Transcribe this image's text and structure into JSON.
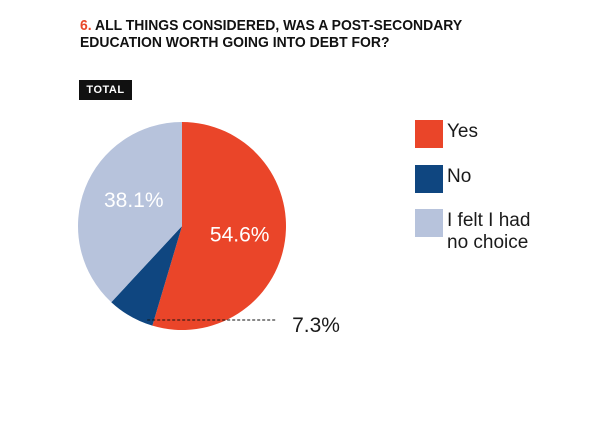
{
  "title": {
    "number": "6.",
    "text": "ALL THINGS CONSIDERED, WAS A POST-SECONDARY EDUCATION WORTH GOING INTO DEBT FOR?"
  },
  "badge": "TOTAL",
  "colors": {
    "accent": "#e8472a",
    "yes": "#ea4529",
    "no": "#0f4680",
    "no_choice": "#b7c3dc",
    "label_text": "#ffffff"
  },
  "chart_data": {
    "type": "pie",
    "start_angle_deg": 0,
    "direction": "clockwise",
    "series": [
      {
        "name": "Yes",
        "value": 54.6,
        "label": "54.6%",
        "color": "#ea4529"
      },
      {
        "name": "No",
        "value": 7.3,
        "label": "7.3%",
        "color": "#0f4680"
      },
      {
        "name": "I felt I had no choice",
        "value": 38.1,
        "label": "38.1%",
        "color": "#b7c3dc"
      }
    ],
    "legend": {
      "placement": "right",
      "entries": [
        {
          "lines": [
            "Yes"
          ],
          "color": "#ea4529"
        },
        {
          "lines": [
            "No"
          ],
          "color": "#0f4680"
        },
        {
          "lines": [
            "I felt I had",
            "no choice"
          ],
          "color": "#b7c3dc"
        }
      ]
    }
  }
}
